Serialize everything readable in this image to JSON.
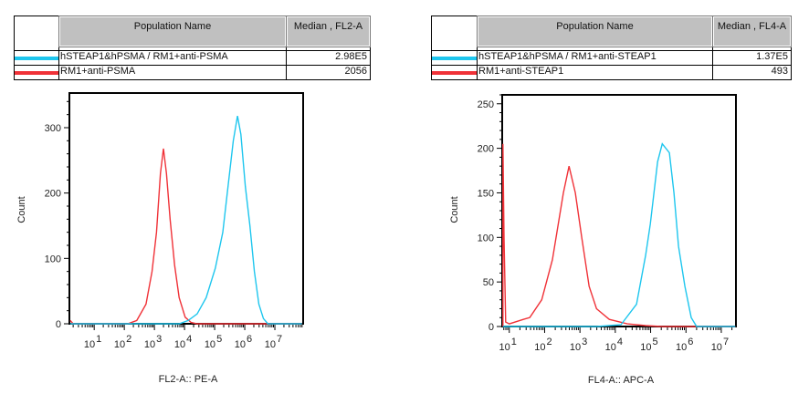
{
  "colors": {
    "blue": "#1ec6ee",
    "red": "#f03238"
  },
  "tables": [
    {
      "header": {
        "name": "Population Name",
        "median": "Median , FL2-A"
      },
      "rows": [
        {
          "color": "blue",
          "name": "hSTEAP1&hPSMA / RM1+anti-PSMA",
          "median": "2.98E5"
        },
        {
          "color": "red",
          "name": "RM1+anti-PSMA",
          "median": "2056"
        }
      ]
    },
    {
      "header": {
        "name": "Population Name",
        "median": "Median , FL4-A"
      },
      "rows": [
        {
          "color": "blue",
          "name": "hSTEAP1&hPSMA / RM1+anti-STEAP1",
          "median": "1.37E5"
        },
        {
          "color": "red",
          "name": "RM1+anti-STEAP1",
          "median": "493"
        }
      ]
    }
  ],
  "chart_data": [
    {
      "type": "line",
      "xlabel": "FL2-A:: PE-A",
      "ylabel": "Count",
      "xscale": "log",
      "xlim": [
        1.5,
        87000000.0
      ],
      "ylim": [
        0,
        353
      ],
      "yticks": [
        0,
        100,
        200,
        300
      ],
      "xtick_exponents": [
        1,
        2,
        3,
        4,
        5,
        6,
        7
      ],
      "xtick_base": "10",
      "grid": false,
      "series": [
        {
          "name": "RM1+anti-PSMA",
          "color": "red",
          "points": [
            [
              1.6,
              5
            ],
            [
              2,
              0
            ],
            [
              130,
              0
            ],
            [
              260,
              5
            ],
            [
              525,
              30
            ],
            [
              830,
              80
            ],
            [
              1175,
              140
            ],
            [
              1585,
              230
            ],
            [
              2000,
              268
            ],
            [
              2510,
              230
            ],
            [
              3310,
              160
            ],
            [
              4680,
              90
            ],
            [
              6610,
              40
            ],
            [
              10500,
              10
            ],
            [
              16600,
              2
            ],
            [
              26300,
              0
            ],
            [
              80000000.0,
              0
            ]
          ]
        },
        {
          "name": "hSTEAP1&hPSMA / RM1+anti-PSMA",
          "color": "blue",
          "points": [
            [
              1.6,
              0
            ],
            [
              6610,
              0
            ],
            [
              13200,
              5
            ],
            [
              26300,
              15
            ],
            [
              52500,
              40
            ],
            [
              105000,
              85
            ],
            [
              186000,
              140
            ],
            [
              263000,
              200
            ],
            [
              417000,
              280
            ],
            [
              575000,
              318
            ],
            [
              741000,
              290
            ],
            [
              1050000,
              210
            ],
            [
              1480000,
              150
            ],
            [
              2090000,
              80
            ],
            [
              2950000,
              30
            ],
            [
              4170000,
              8
            ],
            [
              5890000,
              0
            ],
            [
              80000000.0,
              0
            ]
          ]
        }
      ]
    },
    {
      "type": "line",
      "xlabel": "FL4-A:: APC-A",
      "ylabel": "Count",
      "xscale": "log",
      "xlim": [
        6.3,
        26000000.0
      ],
      "ylim": [
        0,
        260
      ],
      "yticks": [
        0,
        50,
        100,
        150,
        200,
        250
      ],
      "xtick_exponents": [
        1,
        2,
        3,
        4,
        5,
        6,
        7
      ],
      "xtick_base": "10",
      "grid": false,
      "series": [
        {
          "name": "RM1+anti-STEAP1",
          "color": "red",
          "points": [
            [
              6.6,
              0
            ],
            [
              6.6,
              205
            ],
            [
              7.1,
              100
            ],
            [
              7.9,
              5
            ],
            [
              10,
              3
            ],
            [
              25,
              8
            ],
            [
              38,
              10
            ],
            [
              83,
              30
            ],
            [
              166,
              75
            ],
            [
              339,
              150
            ],
            [
              490,
              180
            ],
            [
              741,
              150
            ],
            [
              1120,
              100
            ],
            [
              1820,
              45
            ],
            [
              2950,
              20
            ],
            [
              6760,
              8
            ],
            [
              21900,
              3
            ],
            [
              72400,
              1
            ],
            [
              200000,
              0
            ],
            [
              25000000.0,
              0
            ]
          ]
        },
        {
          "name": "hSTEAP1&hPSMA / RM1+anti-STEAP1",
          "color": "blue",
          "points": [
            [
              6.6,
              0
            ],
            [
              3000,
              0
            ],
            [
              14500,
              2
            ],
            [
              39800,
              25
            ],
            [
              72400,
              80
            ],
            [
              97700,
              115
            ],
            [
              158000,
              185
            ],
            [
              214000,
              205
            ],
            [
              339000,
              195
            ],
            [
              457000,
              150
            ],
            [
              617000,
              90
            ],
            [
              933000,
              45
            ],
            [
              1410000,
              10
            ],
            [
              2000000,
              0
            ],
            [
              25000000.0,
              0
            ]
          ]
        }
      ]
    }
  ]
}
